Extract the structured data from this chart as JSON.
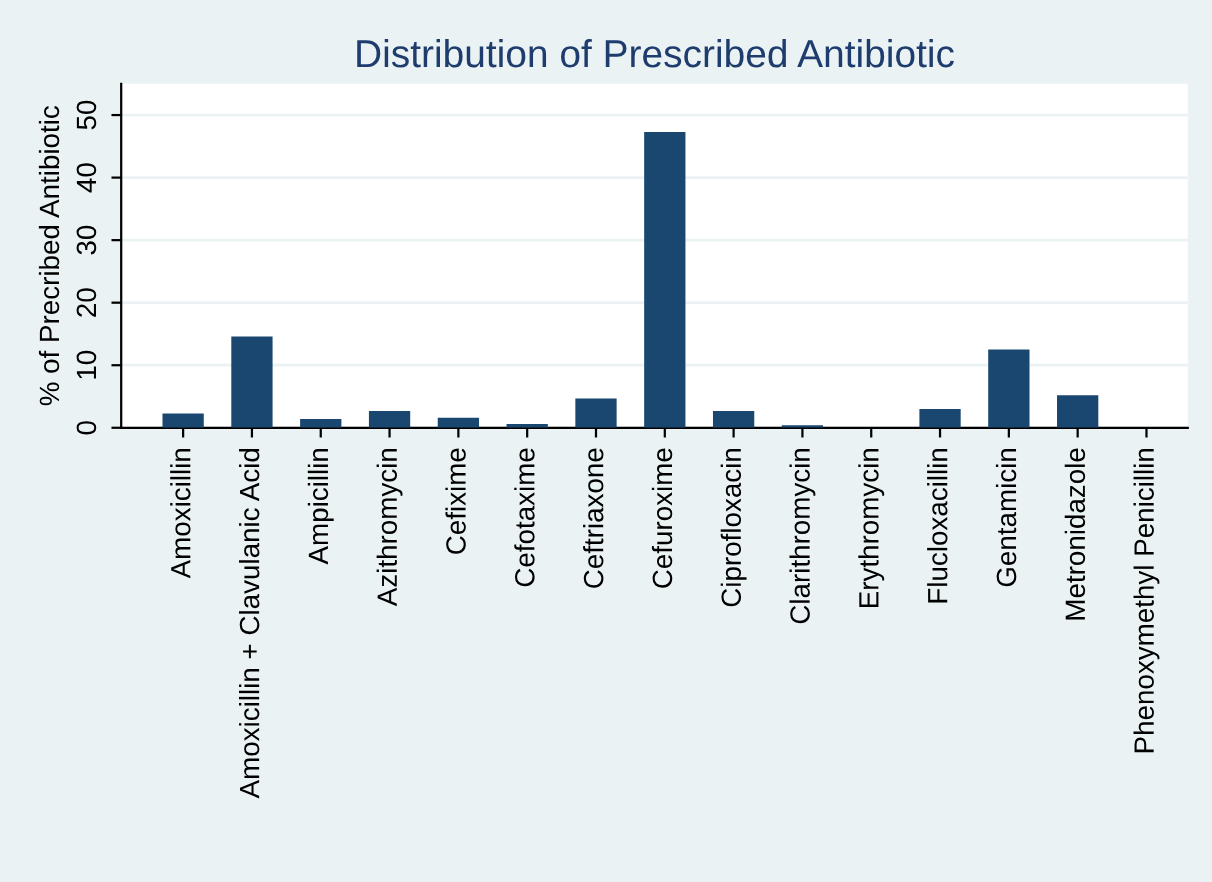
{
  "chart_data": {
    "type": "bar",
    "title": "Distribution of Prescribed Antibiotic",
    "ylabel": "% of Precribed Antibiotic",
    "categories": [
      "Amoxicillin",
      "Amoxicillin + Clavulanic Acid",
      "Ampicillin",
      "Azithromycin",
      "Cefixime",
      "Cefotaxime",
      "Ceftriaxone",
      "Cefuroxime",
      "Ciprofloxacin",
      "Clarithromycin",
      "Erythromycin",
      "Flucloxacillin",
      "Gentamicin",
      "Metronidazole",
      "Phenoxymethyl Penicillin"
    ],
    "values": [
      2.3,
      14.6,
      1.4,
      2.7,
      1.6,
      0.6,
      4.7,
      47.3,
      2.7,
      0.4,
      null,
      3.0,
      12.5,
      5.2,
      null
    ],
    "color": "#1a476f",
    "ylim": [
      0,
      55
    ],
    "yticks": [
      0,
      10,
      20,
      30,
      40,
      50
    ],
    "grid": "y"
  }
}
